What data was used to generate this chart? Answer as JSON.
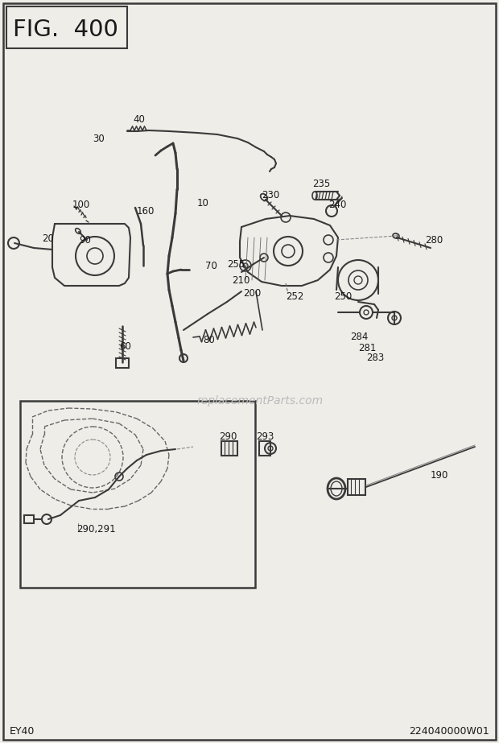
{
  "bg_color": "#eeede8",
  "line_color": "#3a3a3a",
  "text_color": "#1a1a1a",
  "fig_title": "FIG.  400",
  "bottom_left": "EY40",
  "bottom_right": "224040000W01",
  "watermark": "replacementParts.com"
}
